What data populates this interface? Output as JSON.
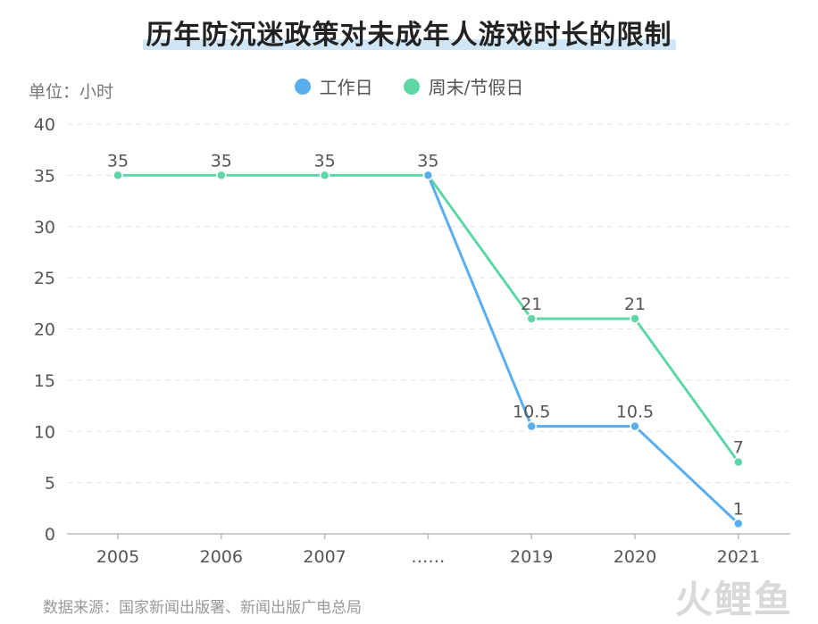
{
  "title": "历年防沉迷政策对未成年人游戏时长的限制",
  "unit_label": "单位：小时",
  "source": "数据来源：国家新闻出版署、新闻出版广电总局",
  "brand": "火鲤鱼",
  "colors": {
    "weekday": "#5aaeee",
    "weekend": "#5ed6a6",
    "grid": "#e3e3e3",
    "axis": "#bbbbbb"
  },
  "chart_data": {
    "type": "line",
    "categories": [
      "2005",
      "2006",
      "2007",
      "……",
      "2019",
      "2020",
      "2021"
    ],
    "ylim": [
      0,
      40
    ],
    "yticks": [
      0,
      5,
      10,
      15,
      20,
      25,
      30,
      35,
      40
    ],
    "legend_position": "top-center",
    "grid": true,
    "series": [
      {
        "name": "工作日",
        "color": "#5aaeee",
        "values": [
          null,
          null,
          null,
          35,
          10.5,
          10.5,
          1
        ],
        "labels": [
          "",
          "",
          "",
          "",
          "10.5",
          "10.5",
          "1"
        ]
      },
      {
        "name": "周末/节假日",
        "color": "#5ed6a6",
        "values": [
          35,
          35,
          35,
          35,
          21,
          21,
          7
        ],
        "labels": [
          "35",
          "35",
          "35",
          "35",
          "21",
          "21",
          "7"
        ]
      }
    ]
  }
}
